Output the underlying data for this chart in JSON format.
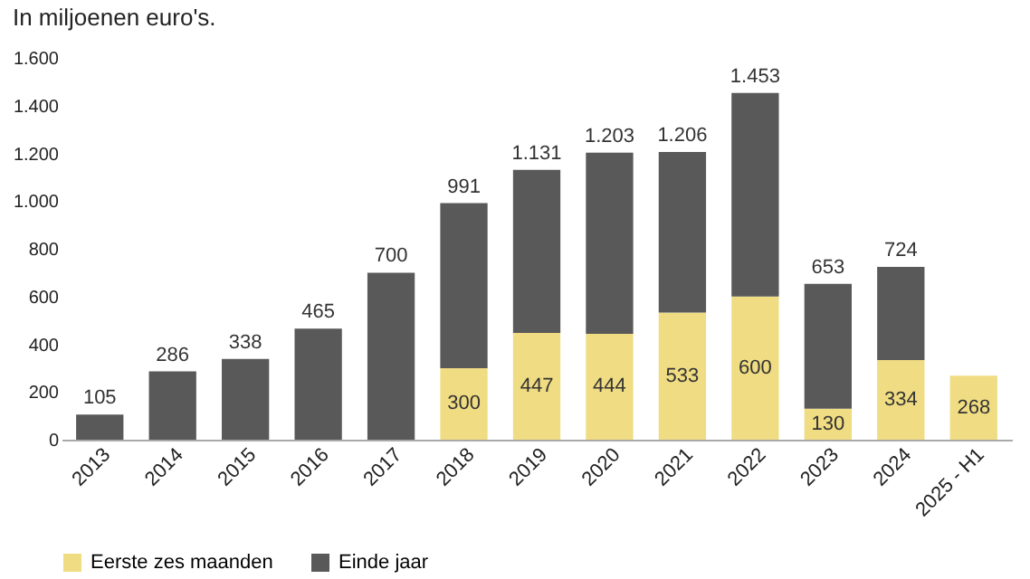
{
  "chart_data": {
    "type": "bar",
    "title": "In miljoenen euro's.",
    "stacked": true,
    "categories": [
      "2013",
      "2014",
      "2015",
      "2016",
      "2017",
      "2018",
      "2019",
      "2020",
      "2021",
      "2022",
      "2023",
      "2024",
      "2025 - H1"
    ],
    "series": [
      {
        "name": "Eerste zes maanden",
        "color": "#f0dc82",
        "values": [
          null,
          null,
          null,
          null,
          null,
          300,
          447,
          444,
          533,
          600,
          130,
          334,
          268
        ],
        "value_labels": [
          null,
          null,
          null,
          null,
          null,
          "300",
          "447",
          "444",
          "533",
          "600",
          "130",
          "334",
          "268"
        ]
      },
      {
        "name": "Einde jaar",
        "color": "#595959",
        "values": [
          105,
          286,
          338,
          465,
          700,
          691,
          684,
          759,
          673,
          853,
          523,
          390,
          null
        ]
      }
    ],
    "totals": [
      "105",
      "286",
      "338",
      "465",
      "700",
      "991",
      "1.131",
      "1.203",
      "1.206",
      "1.453",
      "653",
      "724",
      null
    ],
    "ylim": [
      0,
      1600
    ],
    "yticks": [
      0,
      200,
      400,
      600,
      800,
      {
        "value": 1000,
        "label": "1.000"
      },
      {
        "value": 1200,
        "label": "1.200"
      },
      {
        "value": 1400,
        "label": "1.400"
      },
      {
        "value": 1600,
        "label": "1.600"
      }
    ],
    "legend": "bottom",
    "grid": false
  }
}
